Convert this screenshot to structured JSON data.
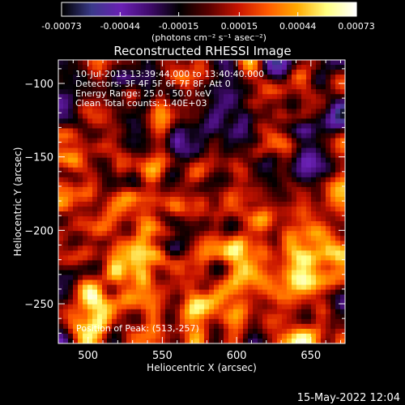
{
  "colorbar": {
    "tick_labels": [
      "-0.00073",
      "-0.00044",
      "-0.00015",
      "0.00015",
      "0.00044",
      "0.00073"
    ],
    "tick_values": [
      -0.00073,
      -0.00044,
      -0.00015,
      0.00015,
      0.00044,
      0.00073
    ],
    "units_label": "(photons cm⁻² s⁻¹ asec⁻²)",
    "range": [
      -0.00073,
      0.00073
    ],
    "colormap": [
      "#000000",
      "#3a3a8a",
      "#6a20b4",
      "#3e0a6a",
      "#000000",
      "#5a0000",
      "#c81400",
      "#ff5a00",
      "#ffaa00",
      "#ffff80",
      "#ffffff"
    ]
  },
  "plot": {
    "title": "Reconstructed RHESSI Image",
    "annotations": [
      "10-Jul-2013 13:39:44.000 to 13:40:40.000",
      "Detectors: 3F 4F 5F 6F 7F 8F, Att 0",
      "Energy Range: 25.0 - 50.0 keV",
      "Clean    Total counts: 1.40E+03"
    ],
    "peak_label": "Position of Peak: (513,-257)"
  },
  "chart_data": {
    "type": "heatmap",
    "title": "Reconstructed RHESSI Image",
    "xlabel": "Heliocentric X (arcsec)",
    "ylabel": "Heliocentric Y (arcsec)",
    "xlim": [
      480,
      673
    ],
    "ylim": [
      -277,
      -84
    ],
    "xticks": [
      500,
      550,
      600,
      650
    ],
    "yticks": [
      -100,
      -150,
      -200,
      -250
    ],
    "colorbar_range": [
      -0.00073,
      0.00073
    ],
    "peak_position": [
      513,
      -257
    ],
    "grid": false
  },
  "footer": {
    "timestamp": "15-May-2022 12:04"
  }
}
